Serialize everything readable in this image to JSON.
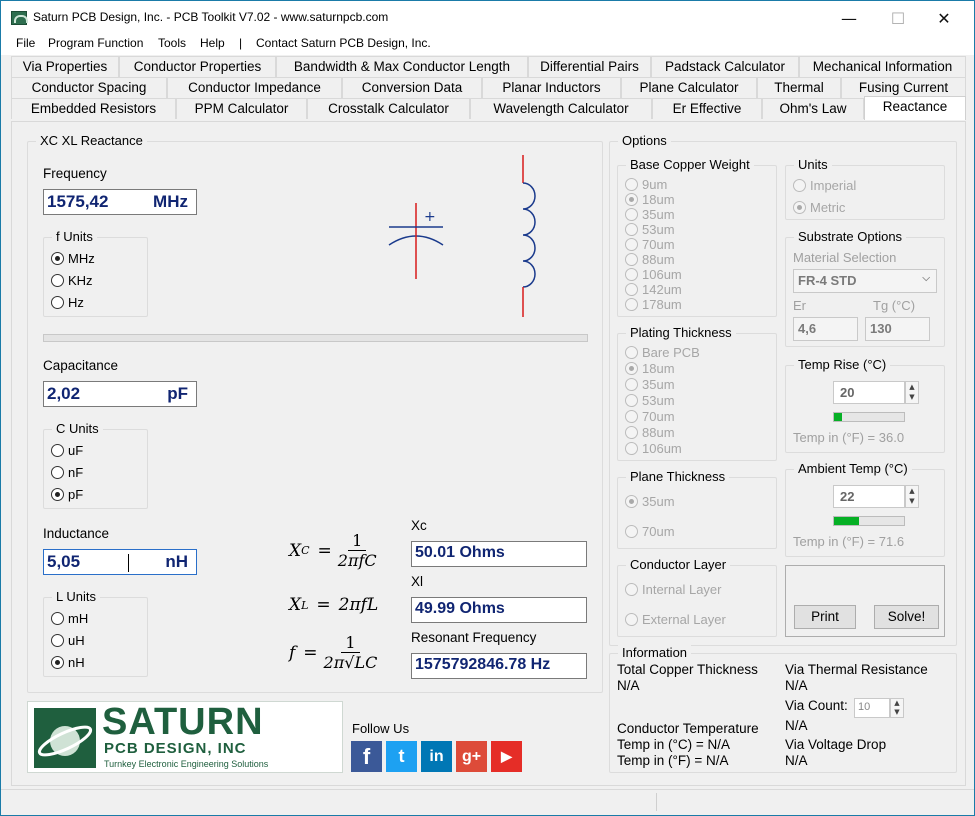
{
  "window": {
    "title": "Saturn PCB Design, Inc. - PCB Toolkit V7.02 - www.saturnpcb.com",
    "minimize": "—",
    "maximize": "☐",
    "close": "✕"
  },
  "menu": {
    "file": "File",
    "program_function": "Program Function",
    "tools": "Tools",
    "help": "Help",
    "separator": "|",
    "contact": "Contact Saturn PCB Design, Inc."
  },
  "tabs": {
    "row1": [
      "Via Properties",
      "Conductor Properties",
      "Bandwidth & Max Conductor Length",
      "Differential Pairs",
      "Padstack Calculator",
      "Mechanical Information"
    ],
    "row2": [
      "Conductor Spacing",
      "Conductor Impedance",
      "Conversion Data",
      "Planar Inductors",
      "Plane Calculator",
      "Thermal",
      "Fusing Current"
    ],
    "row3": [
      "Embedded Resistors",
      "PPM Calculator",
      "Crosstalk Calculator",
      "Wavelength Calculator",
      "Er Effective",
      "Ohm's Law",
      "Reactance"
    ],
    "active": "Reactance"
  },
  "reactance": {
    "group_title": "XC XL Reactance",
    "frequency": {
      "label": "Frequency",
      "value": "1575,42",
      "unit": "MHz"
    },
    "f_units": {
      "title": "f Units",
      "options": [
        "MHz",
        "KHz",
        "Hz"
      ],
      "selected": "MHz"
    },
    "capacitance": {
      "label": "Capacitance",
      "value": "2,02",
      "unit": "pF"
    },
    "c_units": {
      "title": "C Units",
      "options": [
        "uF",
        "nF",
        "pF"
      ],
      "selected": "pF"
    },
    "inductance": {
      "label": "Inductance",
      "value": "5,05",
      "unit": "nH"
    },
    "l_units": {
      "title": "L Units",
      "options": [
        "mH",
        "uH",
        "nH"
      ],
      "selected": "nH"
    },
    "cap_symbol_plus": "+",
    "formulas": {
      "xc": {
        "lhs_x": "X",
        "lhs_sub": "C",
        "eq": "=",
        "num": "1",
        "den": "2πfC"
      },
      "xl": {
        "lhs_x": "X",
        "lhs_sub": "L",
        "eq": "=",
        "rhs": "2πfL"
      },
      "f": {
        "lhs": "f",
        "eq": "=",
        "num": "1",
        "den": "2π√LC"
      }
    },
    "results": {
      "xc_label": "Xc",
      "xc_value": "50.01 Ohms",
      "xl_label": "Xl",
      "xl_value": "49.99 Ohms",
      "res_label": "Resonant Frequency",
      "res_value": "1575792846.78 Hz"
    }
  },
  "options": {
    "title": "Options",
    "base_copper": {
      "title": "Base Copper Weight",
      "options": [
        "9um",
        "18um",
        "35um",
        "53um",
        "70um",
        "88um",
        "106um",
        "142um",
        "178um"
      ],
      "selected": "18um"
    },
    "units": {
      "title": "Units",
      "options": [
        "Imperial",
        "Metric"
      ],
      "selected": "Metric"
    },
    "substrate": {
      "title": "Substrate Options",
      "material_label": "Material Selection",
      "material_value": "FR-4 STD",
      "er_label": "Er",
      "er_value": "4,6",
      "tg_label": "Tg (°C)",
      "tg_value": "130"
    },
    "plating": {
      "title": "Plating Thickness",
      "options": [
        "Bare PCB",
        "18um",
        "35um",
        "53um",
        "70um",
        "88um",
        "106um"
      ],
      "selected": "18um"
    },
    "temp_rise": {
      "title": "Temp Rise (°C)",
      "value": "20",
      "progress": 0.12,
      "note": "Temp in (°F) = 36.0"
    },
    "plane": {
      "title": "Plane Thickness",
      "options": [
        "35um",
        "70um"
      ],
      "selected": "35um"
    },
    "ambient": {
      "title": "Ambient Temp (°C)",
      "value": "22",
      "progress": 0.35,
      "note": "Temp in (°F) = 71.6"
    },
    "conductor_layer": {
      "title": "Conductor Layer",
      "options": [
        "Internal Layer",
        "External Layer"
      ],
      "selected": ""
    },
    "print_label": "Print",
    "solve_label": "Solve!"
  },
  "information": {
    "title": "Information",
    "total_copper_label": "Total Copper Thickness",
    "total_copper_value": "N/A",
    "via_thermal_label": "Via Thermal Resistance",
    "via_thermal_value": "N/A",
    "via_count_label": "Via Count:",
    "via_count_value": "10",
    "via_count_result": "N/A",
    "conductor_temp_label": "Conductor Temperature",
    "temp_c": "Temp in (°C) = N/A",
    "temp_f": "Temp in (°F) = N/A",
    "via_voltage_label": "Via Voltage Drop",
    "via_voltage_value": "N/A"
  },
  "branding": {
    "logo_main": "SATURN",
    "logo_sub": "PCB DESIGN, INC",
    "logo_tag": "Turnkey Electronic Engineering Solutions",
    "follow": "Follow Us",
    "social": [
      "f",
      "t",
      "in",
      "g+",
      "▶"
    ]
  },
  "colors": {
    "value_text": "#102572",
    "progress_green": "#06b025",
    "wire_red": "#d91b1b",
    "inductor_blue": "#1a3a8c",
    "logo_green": "#1f5f3e"
  }
}
